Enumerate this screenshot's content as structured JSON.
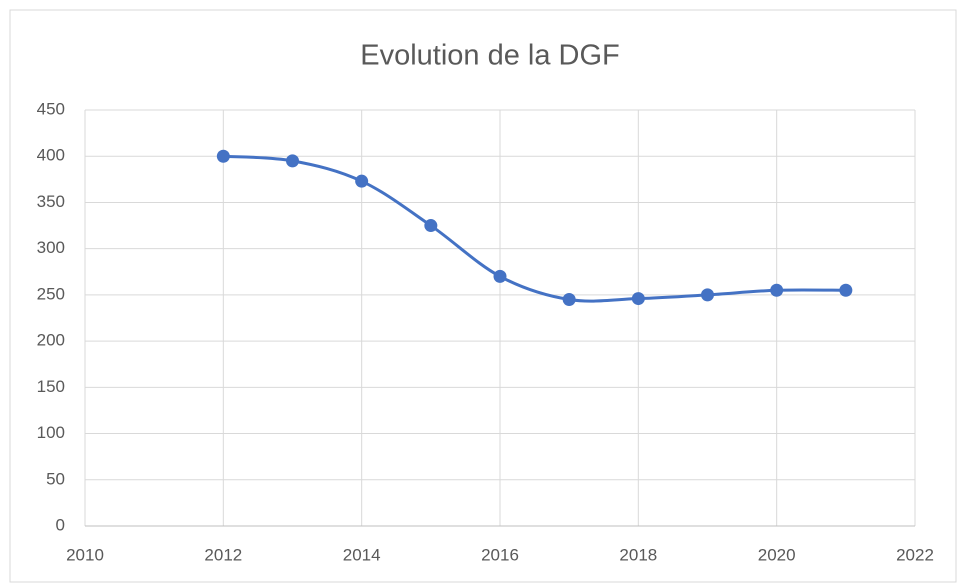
{
  "chart_data": {
    "type": "line",
    "title": "Evolution de la DGF",
    "x": [
      2012,
      2013,
      2014,
      2015,
      2016,
      2017,
      2018,
      2019,
      2020,
      2021
    ],
    "values": [
      400,
      395,
      373,
      325,
      270,
      245,
      246,
      250,
      255,
      255
    ],
    "color": "#4472c4",
    "smooth": true,
    "markers": true,
    "xlim": [
      2010,
      2022
    ],
    "xticks": [
      2010,
      2012,
      2014,
      2016,
      2018,
      2020,
      2022
    ],
    "ylim": [
      0,
      450
    ],
    "yticks": [
      0,
      50,
      100,
      150,
      200,
      250,
      300,
      350,
      400,
      450
    ],
    "grid": true
  }
}
